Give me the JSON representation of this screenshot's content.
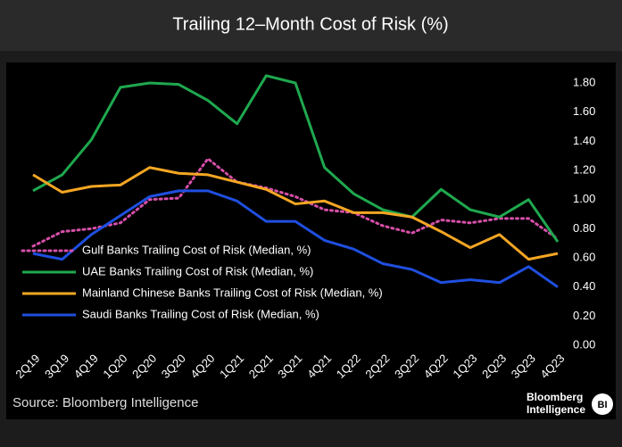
{
  "chart_data": {
    "type": "line",
    "title": "Trailing 12–Month Cost of Risk (%)",
    "categories": [
      "2Q19",
      "3Q19",
      "4Q19",
      "1Q20",
      "2Q20",
      "3Q20",
      "4Q20",
      "1Q21",
      "2Q21",
      "3Q21",
      "4Q21",
      "1Q22",
      "2Q22",
      "3Q22",
      "4Q22",
      "1Q23",
      "2Q23",
      "3Q23",
      "4Q23"
    ],
    "series": [
      {
        "name": "Gulf Banks Trailing Cost of Risk (Median, %)",
        "color": "#d64fa8",
        "style": "dotted",
        "values": [
          0.68,
          0.78,
          0.8,
          0.84,
          1.0,
          1.01,
          1.28,
          1.12,
          1.08,
          1.02,
          0.93,
          0.91,
          0.82,
          0.77,
          0.86,
          0.84,
          0.87,
          0.87,
          0.73
        ]
      },
      {
        "name": "UAE Banks Trailing Cost of Risk (Median, %)",
        "color": "#1fa84f",
        "style": "solid",
        "values": [
          1.06,
          1.17,
          1.41,
          1.77,
          1.8,
          1.79,
          1.68,
          1.52,
          1.85,
          1.8,
          1.22,
          1.04,
          0.93,
          0.88,
          1.07,
          0.93,
          0.88,
          1.0,
          0.71
        ]
      },
      {
        "name": "Mainland Chinese Banks Trailing Cost of Risk (Median, %)",
        "color": "#f5a623",
        "style": "solid",
        "values": [
          1.17,
          1.05,
          1.09,
          1.1,
          1.22,
          1.18,
          1.17,
          1.12,
          1.07,
          0.97,
          0.99,
          0.91,
          0.91,
          0.88,
          0.78,
          0.67,
          0.76,
          0.59,
          0.63
        ]
      },
      {
        "name": "Saudi Banks Trailing Cost of Risk (Median, %)",
        "color": "#1f4fe0",
        "style": "solid",
        "values": [
          0.63,
          0.59,
          0.76,
          0.89,
          1.02,
          1.06,
          1.06,
          0.99,
          0.85,
          0.85,
          0.72,
          0.66,
          0.56,
          0.52,
          0.43,
          0.45,
          0.43,
          0.54,
          0.4
        ]
      }
    ],
    "ylim": [
      0,
      1.8
    ],
    "yticks": [
      {
        "value": 0,
        "label": "0.00"
      },
      {
        "value": 0.2,
        "label": "0.20"
      },
      {
        "value": 0.4,
        "label": "0.40"
      },
      {
        "value": 0.6,
        "label": "0.60"
      },
      {
        "value": 0.8,
        "label": "0.80"
      },
      {
        "value": 1,
        "label": "1.00"
      },
      {
        "value": 1.2,
        "label": "1.20"
      },
      {
        "value": 1.4,
        "label": "1.40"
      },
      {
        "value": 1.6,
        "label": "1.60"
      },
      {
        "value": 1.8,
        "label": "1.80"
      }
    ],
    "grid": false,
    "legend": "lower left",
    "source": "Source: Bloomberg Intelligence",
    "logo": {
      "lines": [
        "Bloomberg",
        "Intelligence"
      ],
      "mark": "BI"
    }
  }
}
